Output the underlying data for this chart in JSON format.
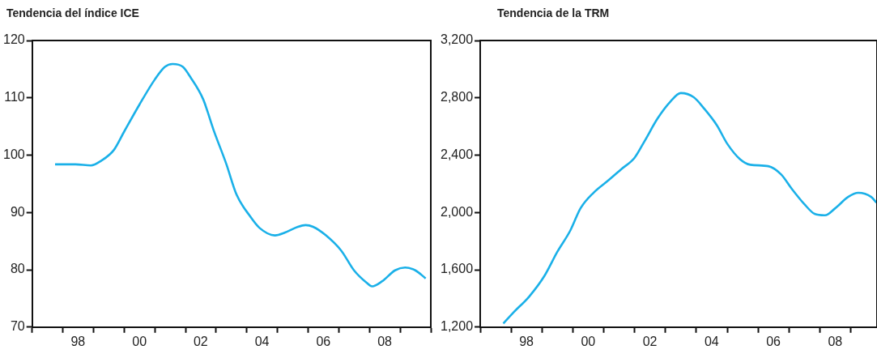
{
  "chart_data": [
    {
      "type": "line",
      "title": "Tendencia del índice ICE",
      "xlim": [
        "1997-01-01",
        "2010-01-01"
      ],
      "ylim": [
        70,
        120
      ],
      "yticks": [
        70,
        80,
        90,
        100,
        110,
        120
      ],
      "grid": false,
      "legend": false,
      "xticks": [
        {
          "value": "1997-01-01",
          "label": null
        },
        {
          "value": "1998-01-01",
          "label": null
        },
        {
          "value": "1998-07-01",
          "label": "98"
        },
        {
          "value": "1999-01-01",
          "label": null
        },
        {
          "value": "2000-01-01",
          "label": null
        },
        {
          "value": "2000-07-01",
          "label": "00"
        },
        {
          "value": "2001-01-01",
          "label": null
        },
        {
          "value": "2002-01-01",
          "label": null
        },
        {
          "value": "2002-07-01",
          "label": "02"
        },
        {
          "value": "2003-01-01",
          "label": null
        },
        {
          "value": "2004-01-01",
          "label": null
        },
        {
          "value": "2004-07-01",
          "label": "04"
        },
        {
          "value": "2005-01-01",
          "label": null
        },
        {
          "value": "2006-01-01",
          "label": null
        },
        {
          "value": "2006-07-01",
          "label": "06"
        },
        {
          "value": "2007-01-01",
          "label": null
        },
        {
          "value": "2008-01-01",
          "label": null
        },
        {
          "value": "2008-07-01",
          "label": "08"
        },
        {
          "value": "2009-01-01",
          "label": null
        },
        {
          "value": "2010-01-01",
          "label": null
        }
      ],
      "x": [
        "1997-10",
        "1998-06",
        "1998-12",
        "1999-04",
        "1999-09",
        "2000-01",
        "2000-07",
        "2001-01",
        "2001-05",
        "2001-08",
        "2001-12",
        "2002-03",
        "2002-08",
        "2002-12",
        "2003-05",
        "2003-09",
        "2004-02",
        "2004-06",
        "2004-12",
        "2005-04",
        "2005-09",
        "2005-12",
        "2006-03",
        "2006-08",
        "2007-02",
        "2007-07",
        "2007-12",
        "2008-02",
        "2008-06",
        "2008-11",
        "2009-03",
        "2009-07",
        "2009-11"
      ],
      "series": [
        {
          "color": "#1ab0e8",
          "values": [
            98.4,
            98.4,
            98.2,
            99,
            100.9,
            104.1,
            108.8,
            113.2,
            115.4,
            115.9,
            115.4,
            113.6,
            109.7,
            104.4,
            98.5,
            93.1,
            89.5,
            87.3,
            86,
            86.5,
            87.5,
            87.8,
            87.5,
            86,
            83.3,
            79.9,
            77.7,
            77.1,
            78,
            79.9,
            80.4,
            79.9,
            78.5
          ]
        }
      ]
    },
    {
      "type": "line",
      "title": "Tendencia de la TRM",
      "xlim": [
        "1997-01-01",
        "2009-11-08"
      ],
      "ylim": [
        1200,
        3200
      ],
      "yticks": [
        {
          "value": 1200,
          "label": "1,200"
        },
        {
          "value": 1600,
          "label": "1,600"
        },
        {
          "value": 2000,
          "label": "2,000"
        },
        {
          "value": 2400,
          "label": "2,400"
        },
        {
          "value": 2800,
          "label": "2,800"
        },
        {
          "value": 3200,
          "label": "3,200"
        }
      ],
      "grid": false,
      "legend": false,
      "xticks": [
        {
          "value": "1997-01-01",
          "label": null
        },
        {
          "value": "1998-01-01",
          "label": null
        },
        {
          "value": "1998-07-01",
          "label": "98"
        },
        {
          "value": "1999-01-01",
          "label": null
        },
        {
          "value": "2000-01-01",
          "label": null
        },
        {
          "value": "2000-07-01",
          "label": "00"
        },
        {
          "value": "2001-01-01",
          "label": null
        },
        {
          "value": "2002-01-01",
          "label": null
        },
        {
          "value": "2002-07-01",
          "label": "02"
        },
        {
          "value": "2003-01-01",
          "label": null
        },
        {
          "value": "2004-01-01",
          "label": null
        },
        {
          "value": "2004-07-01",
          "label": "04"
        },
        {
          "value": "2005-01-01",
          "label": null
        },
        {
          "value": "2006-01-01",
          "label": null
        },
        {
          "value": "2006-07-01",
          "label": "06"
        },
        {
          "value": "2007-01-01",
          "label": null
        },
        {
          "value": "2008-01-01",
          "label": null
        },
        {
          "value": "2008-07-01",
          "label": "08"
        },
        {
          "value": "2009-01-01",
          "label": null
        }
      ],
      "x": [
        "1997-10",
        "1998-02",
        "1998-08",
        "1999-02",
        "1999-07",
        "1999-12",
        "2000-04",
        "2000-09",
        "2001-03",
        "2001-08",
        "2002-01",
        "2002-05",
        "2002-10",
        "2003-03",
        "2003-07",
        "2003-12",
        "2004-04",
        "2004-09",
        "2005-01",
        "2005-06",
        "2005-10",
        "2006-05",
        "2006-10",
        "2007-02",
        "2007-07",
        "2007-11",
        "2008-03",
        "2008-07",
        "2008-12",
        "2009-04",
        "2009-09",
        "2009-11"
      ],
      "series": [
        {
          "color": "#1ab0e8",
          "values": [
            1225,
            1304,
            1412,
            1559,
            1725,
            1873,
            2029,
            2137,
            2226,
            2304,
            2382,
            2500,
            2657,
            2774,
            2833,
            2804,
            2726,
            2608,
            2480,
            2372,
            2333,
            2323,
            2265,
            2167,
            2059,
            1990,
            1980,
            2029,
            2108,
            2137,
            2108,
            2069
          ]
        }
      ]
    }
  ]
}
